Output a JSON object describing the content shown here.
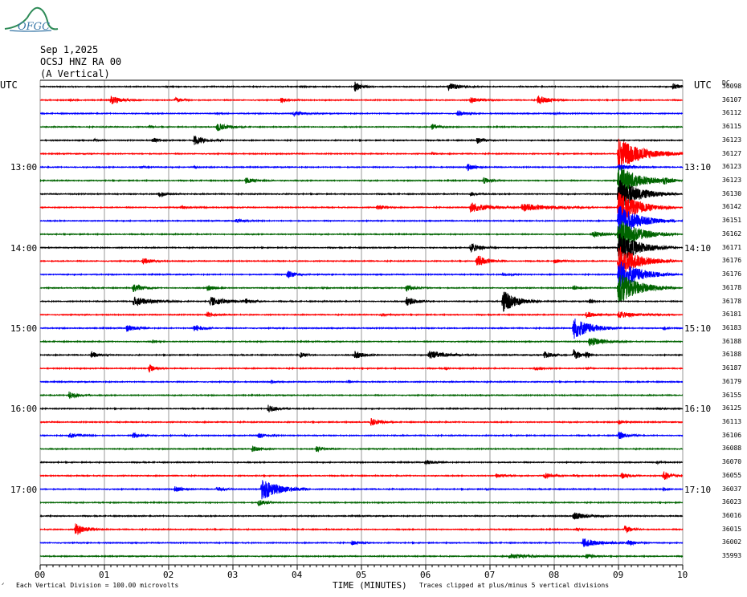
{
  "logo": {
    "text": "OFGC"
  },
  "header": {
    "date": "Sep 1,2025",
    "station": "OCSJ HNZ RA 00",
    "component": "(A Vertical)"
  },
  "left_axis": {
    "label": "UTC",
    "ticks": [
      "13:00",
      "14:00",
      "15:00",
      "16:00",
      "17:00"
    ]
  },
  "right_axis": {
    "label": "UTC",
    "ticks": [
      "13:10",
      "14:10",
      "15:10",
      "16:10",
      "17:10"
    ]
  },
  "right_column_header": "DC",
  "footer": {
    "scale_note": "Each Vertical Division =  100.00 microvolts",
    "clip_note": "Traces clipped at plus/minus 5 vertical divisions",
    "marker": "ᐟ"
  },
  "colors": {
    "black": "#000000",
    "red": "#ff0000",
    "blue": "#0000ff",
    "green": "#006400",
    "grid": "#808080"
  },
  "chart_data": {
    "type": "helicorder",
    "title": "Sep 1,2025 OCSJ HNZ RA 00 (A Vertical)",
    "xlabel": "TIME (MINUTES)",
    "x_ticks": [
      "00",
      "01",
      "02",
      "03",
      "04",
      "05",
      "06",
      "07",
      "08",
      "09",
      "10"
    ],
    "xlim": [
      0,
      10
    ],
    "trace_minutes": 10,
    "trace_color_cycle": [
      "black",
      "red",
      "blue",
      "green"
    ],
    "trace_dc_offsets": [
      36098,
      36107,
      36112,
      36115,
      36123,
      36127,
      36123,
      36123,
      36130,
      36142,
      36151,
      36162,
      36171,
      36176,
      36176,
      36178,
      36178,
      36181,
      36183,
      36188,
      36188,
      36187,
      36179,
      36155,
      36125,
      36113,
      36106,
      36088,
      36070,
      36055,
      36037,
      36023,
      36016,
      36015,
      36002,
      35993
    ],
    "events": [
      {
        "trace": 0,
        "t": 4.9,
        "amp": 1.6,
        "dur": 0.1
      },
      {
        "trace": 0,
        "t": 6.35,
        "amp": 1.2,
        "dur": 0.15
      },
      {
        "trace": 0,
        "t": 9.85,
        "amp": 1.0,
        "dur": 0.1
      },
      {
        "trace": 0,
        "t": 4.05,
        "amp": 0.4,
        "dur": 0.05
      },
      {
        "trace": 1,
        "t": 1.1,
        "amp": 1.4,
        "dur": 0.15
      },
      {
        "trace": 1,
        "t": 2.1,
        "amp": 1.0,
        "dur": 0.1
      },
      {
        "trace": 1,
        "t": 3.75,
        "amp": 0.8,
        "dur": 0.1
      },
      {
        "trace": 1,
        "t": 6.7,
        "amp": 0.9,
        "dur": 0.15
      },
      {
        "trace": 1,
        "t": 7.75,
        "amp": 1.5,
        "dur": 0.15
      },
      {
        "trace": 1,
        "t": 0.45,
        "amp": 0.4,
        "dur": 0.05
      },
      {
        "trace": 2,
        "t": 3.95,
        "amp": 0.7,
        "dur": 0.15
      },
      {
        "trace": 2,
        "t": 6.5,
        "amp": 0.9,
        "dur": 0.1
      },
      {
        "trace": 2,
        "t": 2.75,
        "amp": 0.4,
        "dur": 0.05
      },
      {
        "trace": 2,
        "t": 8.0,
        "amp": 0.4,
        "dur": 0.05
      },
      {
        "trace": 3,
        "t": 2.75,
        "amp": 1.4,
        "dur": 0.15
      },
      {
        "trace": 3,
        "t": 6.1,
        "amp": 0.9,
        "dur": 0.1
      },
      {
        "trace": 3,
        "t": 1.7,
        "amp": 0.4,
        "dur": 0.05
      },
      {
        "trace": 4,
        "t": 1.75,
        "amp": 0.8,
        "dur": 0.1
      },
      {
        "trace": 4,
        "t": 2.4,
        "amp": 1.4,
        "dur": 0.15
      },
      {
        "trace": 4,
        "t": 6.8,
        "amp": 1.0,
        "dur": 0.1
      },
      {
        "trace": 4,
        "t": 0.85,
        "amp": 0.5,
        "dur": 0.05
      },
      {
        "trace": 5,
        "t": 9.0,
        "amp": 5.0,
        "dur": 0.35
      },
      {
        "trace": 5,
        "t": 6.1,
        "amp": 0.4,
        "dur": 0.05
      },
      {
        "trace": 6,
        "t": 6.65,
        "amp": 1.2,
        "dur": 0.1
      },
      {
        "trace": 6,
        "t": 9.0,
        "amp": 1.0,
        "dur": 0.2
      },
      {
        "trace": 6,
        "t": 1.55,
        "amp": 0.4,
        "dur": 0.1
      },
      {
        "trace": 6,
        "t": 2.4,
        "amp": 0.4,
        "dur": 0.05
      },
      {
        "trace": 7,
        "t": 3.2,
        "amp": 0.9,
        "dur": 0.15
      },
      {
        "trace": 7,
        "t": 6.9,
        "amp": 1.0,
        "dur": 0.1
      },
      {
        "trace": 7,
        "t": 9.0,
        "amp": 5.0,
        "dur": 0.3
      },
      {
        "trace": 7,
        "t": 9.7,
        "amp": 0.8,
        "dur": 0.1
      },
      {
        "trace": 8,
        "t": 1.85,
        "amp": 0.9,
        "dur": 0.12
      },
      {
        "trace": 8,
        "t": 6.7,
        "amp": 0.6,
        "dur": 0.1
      },
      {
        "trace": 8,
        "t": 9.0,
        "amp": 5.0,
        "dur": 0.3
      },
      {
        "trace": 9,
        "t": 5.25,
        "amp": 0.9,
        "dur": 0.1
      },
      {
        "trace": 9,
        "t": 6.7,
        "amp": 1.6,
        "dur": 0.25
      },
      {
        "trace": 9,
        "t": 7.5,
        "amp": 1.3,
        "dur": 0.4
      },
      {
        "trace": 9,
        "t": 9.0,
        "amp": 5.0,
        "dur": 0.3
      },
      {
        "trace": 9,
        "t": 2.2,
        "amp": 0.4,
        "dur": 0.15
      },
      {
        "trace": 10,
        "t": 3.05,
        "amp": 0.5,
        "dur": 0.15
      },
      {
        "trace": 10,
        "t": 9.0,
        "amp": 5.0,
        "dur": 0.3
      },
      {
        "trace": 11,
        "t": 8.6,
        "amp": 1.0,
        "dur": 0.2
      },
      {
        "trace": 11,
        "t": 9.0,
        "amp": 5.0,
        "dur": 0.3
      },
      {
        "trace": 12,
        "t": 6.7,
        "amp": 1.5,
        "dur": 0.15
      },
      {
        "trace": 12,
        "t": 9.0,
        "amp": 5.0,
        "dur": 0.3
      },
      {
        "trace": 13,
        "t": 1.6,
        "amp": 1.2,
        "dur": 0.12
      },
      {
        "trace": 13,
        "t": 6.8,
        "amp": 2.0,
        "dur": 0.15
      },
      {
        "trace": 13,
        "t": 8.0,
        "amp": 0.8,
        "dur": 0.1
      },
      {
        "trace": 13,
        "t": 9.0,
        "amp": 5.0,
        "dur": 0.3
      },
      {
        "trace": 14,
        "t": 3.85,
        "amp": 1.3,
        "dur": 0.12
      },
      {
        "trace": 14,
        "t": 7.2,
        "amp": 0.5,
        "dur": 0.1
      },
      {
        "trace": 14,
        "t": 9.0,
        "amp": 5.0,
        "dur": 0.3
      },
      {
        "trace": 15,
        "t": 1.45,
        "amp": 1.3,
        "dur": 0.12
      },
      {
        "trace": 15,
        "t": 2.6,
        "amp": 1.0,
        "dur": 0.1
      },
      {
        "trace": 15,
        "t": 5.7,
        "amp": 1.1,
        "dur": 0.12
      },
      {
        "trace": 15,
        "t": 8.3,
        "amp": 0.6,
        "dur": 0.1
      },
      {
        "trace": 15,
        "t": 9.0,
        "amp": 5.0,
        "dur": 0.3
      },
      {
        "trace": 15,
        "t": 4.4,
        "amp": 0.3,
        "dur": 0.05
      },
      {
        "trace": 16,
        "t": 1.45,
        "amp": 1.5,
        "dur": 0.25
      },
      {
        "trace": 16,
        "t": 2.65,
        "amp": 1.4,
        "dur": 0.25
      },
      {
        "trace": 16,
        "t": 5.7,
        "amp": 1.4,
        "dur": 0.15
      },
      {
        "trace": 16,
        "t": 7.2,
        "amp": 3.5,
        "dur": 0.2
      },
      {
        "trace": 16,
        "t": 3.2,
        "amp": 0.7,
        "dur": 0.1
      },
      {
        "trace": 16,
        "t": 8.55,
        "amp": 0.9,
        "dur": 0.05
      },
      {
        "trace": 17,
        "t": 2.6,
        "amp": 0.8,
        "dur": 0.1
      },
      {
        "trace": 17,
        "t": 5.3,
        "amp": 0.5,
        "dur": 0.1
      },
      {
        "trace": 17,
        "t": 9.0,
        "amp": 1.0,
        "dur": 0.3
      },
      {
        "trace": 17,
        "t": 8.5,
        "amp": 1.0,
        "dur": 0.15
      },
      {
        "trace": 18,
        "t": 1.35,
        "amp": 1.2,
        "dur": 0.12
      },
      {
        "trace": 18,
        "t": 2.4,
        "amp": 1.4,
        "dur": 0.1
      },
      {
        "trace": 18,
        "t": 8.3,
        "amp": 3.5,
        "dur": 0.25
      },
      {
        "trace": 18,
        "t": 9.7,
        "amp": 0.5,
        "dur": 0.05
      },
      {
        "trace": 19,
        "t": 8.55,
        "amp": 1.5,
        "dur": 0.2
      },
      {
        "trace": 19,
        "t": 1.75,
        "amp": 0.6,
        "dur": 0.05
      },
      {
        "trace": 20,
        "t": 0.8,
        "amp": 1.1,
        "dur": 0.1
      },
      {
        "trace": 20,
        "t": 4.05,
        "amp": 0.9,
        "dur": 0.08
      },
      {
        "trace": 20,
        "t": 4.9,
        "amp": 1.3,
        "dur": 0.12
      },
      {
        "trace": 20,
        "t": 6.05,
        "amp": 1.3,
        "dur": 0.25
      },
      {
        "trace": 20,
        "t": 7.85,
        "amp": 1.2,
        "dur": 0.12
      },
      {
        "trace": 20,
        "t": 8.3,
        "amp": 2.0,
        "dur": 0.1
      },
      {
        "trace": 20,
        "t": 8.5,
        "amp": 1.0,
        "dur": 0.05
      },
      {
        "trace": 21,
        "t": 1.7,
        "amp": 1.3,
        "dur": 0.08
      },
      {
        "trace": 21,
        "t": 6.3,
        "amp": 0.5,
        "dur": 0.05
      },
      {
        "trace": 21,
        "t": 7.7,
        "amp": 0.6,
        "dur": 0.1
      },
      {
        "trace": 21,
        "t": 8.5,
        "amp": 0.5,
        "dur": 0.05
      },
      {
        "trace": 22,
        "t": 4.8,
        "amp": 0.5,
        "dur": 0.05
      },
      {
        "trace": 22,
        "t": 3.6,
        "amp": 0.5,
        "dur": 0.05
      },
      {
        "trace": 23,
        "t": 0.45,
        "amp": 1.1,
        "dur": 0.12
      },
      {
        "trace": 24,
        "t": 3.55,
        "amp": 1.2,
        "dur": 0.12
      },
      {
        "trace": 24,
        "t": 9.6,
        "amp": 0.3,
        "dur": 0.1
      },
      {
        "trace": 25,
        "t": 5.15,
        "amp": 1.3,
        "dur": 0.12
      },
      {
        "trace": 25,
        "t": 9.0,
        "amp": 0.6,
        "dur": 0.1
      },
      {
        "trace": 26,
        "t": 0.45,
        "amp": 0.8,
        "dur": 0.15
      },
      {
        "trace": 26,
        "t": 1.45,
        "amp": 0.8,
        "dur": 0.12
      },
      {
        "trace": 26,
        "t": 3.4,
        "amp": 1.0,
        "dur": 0.1
      },
      {
        "trace": 26,
        "t": 9.0,
        "amp": 1.2,
        "dur": 0.12
      },
      {
        "trace": 26,
        "t": 2.25,
        "amp": 0.3,
        "dur": 0.05
      },
      {
        "trace": 27,
        "t": 3.3,
        "amp": 1.0,
        "dur": 0.12
      },
      {
        "trace": 27,
        "t": 4.3,
        "amp": 0.8,
        "dur": 0.12
      },
      {
        "trace": 28,
        "t": 6.0,
        "amp": 0.8,
        "dur": 0.12
      },
      {
        "trace": 28,
        "t": 9.6,
        "amp": 0.5,
        "dur": 0.05
      },
      {
        "trace": 29,
        "t": 7.1,
        "amp": 0.7,
        "dur": 0.1
      },
      {
        "trace": 29,
        "t": 7.85,
        "amp": 0.9,
        "dur": 0.12
      },
      {
        "trace": 29,
        "t": 9.05,
        "amp": 1.0,
        "dur": 0.1
      },
      {
        "trace": 29,
        "t": 9.7,
        "amp": 1.5,
        "dur": 0.12
      },
      {
        "trace": 29,
        "t": 8.3,
        "amp": 0.4,
        "dur": 0.05
      },
      {
        "trace": 30,
        "t": 2.1,
        "amp": 1.0,
        "dur": 0.1
      },
      {
        "trace": 30,
        "t": 2.75,
        "amp": 0.8,
        "dur": 0.1
      },
      {
        "trace": 30,
        "t": 3.45,
        "amp": 3.5,
        "dur": 0.25
      },
      {
        "trace": 30,
        "t": 9.7,
        "amp": 0.6,
        "dur": 0.05
      },
      {
        "trace": 30,
        "t": 6.95,
        "amp": 0.3,
        "dur": 0.05
      },
      {
        "trace": 31,
        "t": 3.4,
        "amp": 1.0,
        "dur": 0.1
      },
      {
        "trace": 32,
        "t": 8.3,
        "amp": 1.2,
        "dur": 0.2
      },
      {
        "trace": 33,
        "t": 0.55,
        "amp": 1.8,
        "dur": 0.15
      },
      {
        "trace": 33,
        "t": 9.1,
        "amp": 1.4,
        "dur": 0.1
      },
      {
        "trace": 33,
        "t": 8.35,
        "amp": 0.5,
        "dur": 0.05
      },
      {
        "trace": 34,
        "t": 4.85,
        "amp": 0.7,
        "dur": 0.1
      },
      {
        "trace": 34,
        "t": 8.45,
        "amp": 1.4,
        "dur": 0.25
      },
      {
        "trace": 34,
        "t": 9.15,
        "amp": 0.9,
        "dur": 0.12
      },
      {
        "trace": 35,
        "t": 7.3,
        "amp": 0.6,
        "dur": 0.4
      },
      {
        "trace": 35,
        "t": 8.5,
        "amp": 0.8,
        "dur": 0.1
      }
    ]
  }
}
